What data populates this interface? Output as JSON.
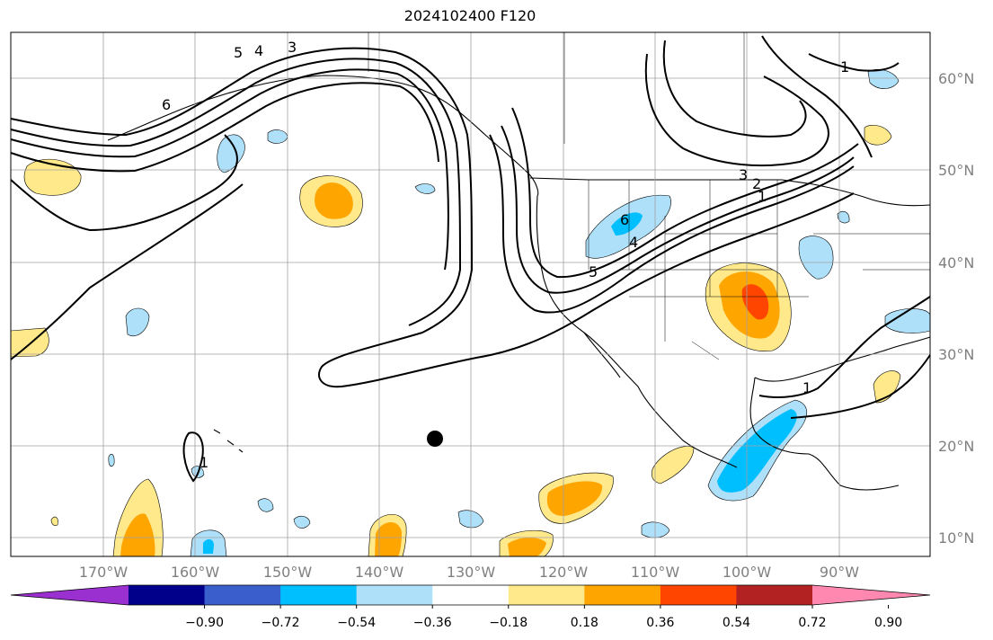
{
  "title": "2024102400 F120",
  "lon_labels": [
    "170°W",
    "160°W",
    "150°W",
    "140°W",
    "130°W",
    "120°W",
    "110°W",
    "100°W",
    "90°W"
  ],
  "lat_labels": [
    "60°N",
    "50°N",
    "40°N",
    "30°N",
    "20°N",
    "10°N"
  ],
  "contour_labels": [
    "5",
    "4",
    "3",
    "6",
    "1",
    "3",
    "2",
    "1",
    "6",
    "4",
    "5",
    "1",
    "1"
  ],
  "colorbar": {
    "tick_labels": [
      "−0.90",
      "−0.72",
      "−0.54",
      "−0.36",
      "−0.18",
      "0.18",
      "0.36",
      "0.54",
      "0.72",
      "0.90"
    ],
    "colors": [
      "#9b30d0",
      "#00008b",
      "#3a5fcd",
      "#00bfff",
      "#aee0fa",
      "#ffffff",
      "#ffe98a",
      "#ffa500",
      "#ff4500",
      "#b22222",
      "#ff88b0"
    ]
  },
  "colors": {
    "contour": "#000000",
    "grid": "#a0a0a0",
    "axis_label": "#808080",
    "land_outline": "#000000",
    "marker": "#000000"
  }
}
